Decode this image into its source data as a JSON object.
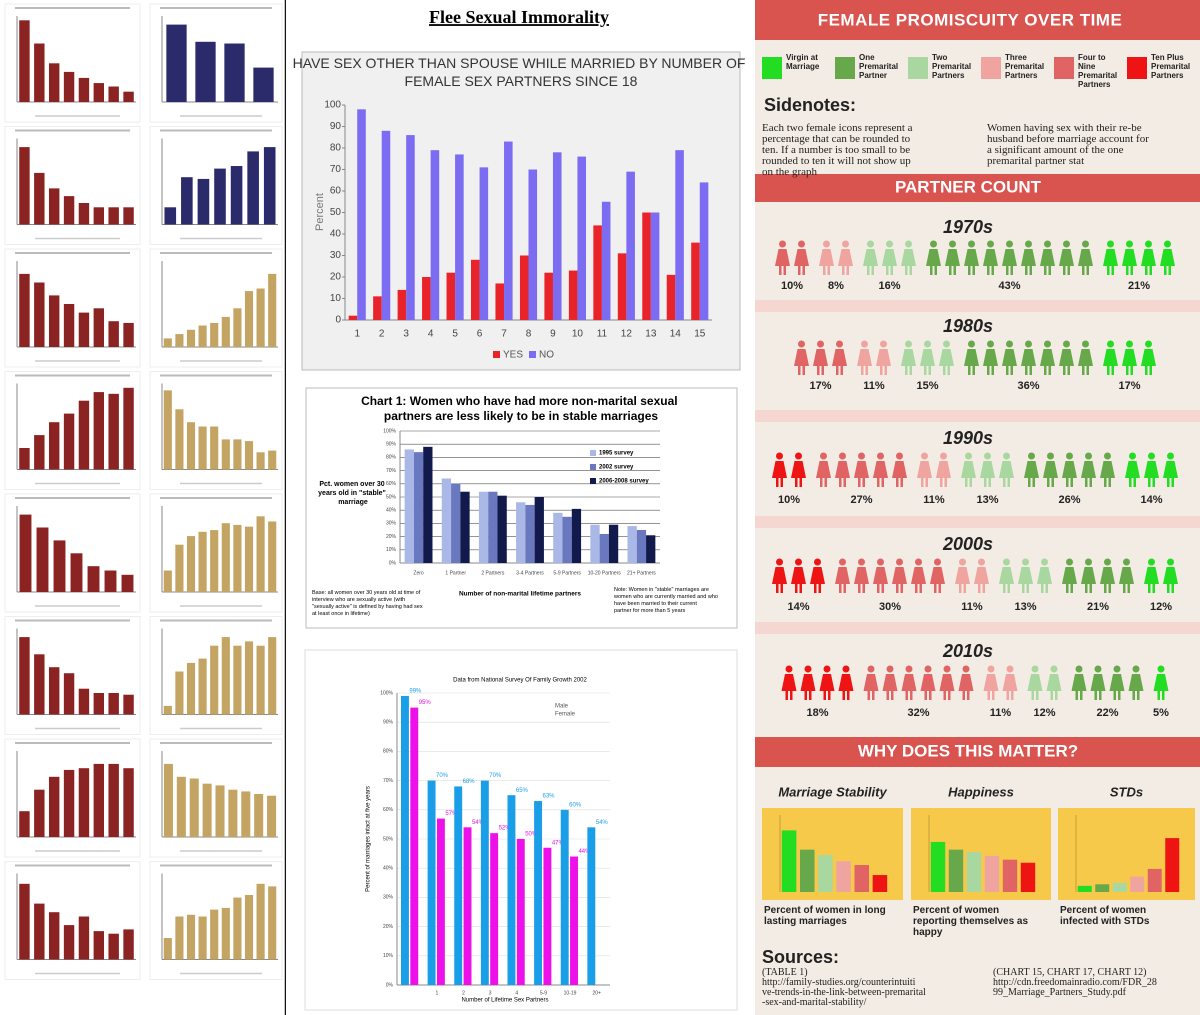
{
  "page_title": "Flee Sexual Immorality",
  "thumbnails": [
    {
      "type": "bar",
      "color": "#8b2323",
      "ylim": [
        0,
        100
      ],
      "values": [
        95,
        68,
        45,
        35,
        28,
        22,
        18,
        12
      ]
    },
    {
      "type": "bar",
      "color": "#2b2b6b",
      "ylim": [
        0,
        100
      ],
      "values": [
        90,
        70,
        68,
        40
      ]
    },
    {
      "type": "bar",
      "color": "#8b2323",
      "ylim": [
        0,
        100
      ],
      "values": [
        90,
        60,
        42,
        33,
        25,
        20,
        20,
        20
      ]
    },
    {
      "type": "bar",
      "color": "#2b2b6b",
      "ylim": [
        0,
        100
      ],
      "values": [
        20,
        55,
        53,
        65,
        68,
        85,
        90
      ]
    },
    {
      "type": "bar",
      "color": "#8b2323",
      "ylim": [
        0,
        100
      ],
      "values": [
        85,
        75,
        60,
        50,
        40,
        45,
        30,
        28
      ]
    },
    {
      "type": "bar",
      "color": "#c3a463",
      "ylim": [
        0,
        100
      ],
      "values": [
        10,
        15,
        20,
        25,
        28,
        35,
        45,
        65,
        68,
        85
      ]
    },
    {
      "type": "bar",
      "color": "#8b2323",
      "ylim": [
        0,
        100
      ],
      "values": [
        25,
        40,
        55,
        65,
        80,
        90,
        88,
        95
      ]
    },
    {
      "type": "bar",
      "color": "#c3a463",
      "ylim": [
        0,
        100
      ],
      "values": [
        92,
        70,
        55,
        50,
        50,
        35,
        35,
        33,
        20,
        22
      ]
    },
    {
      "type": "bar",
      "color": "#8b2323",
      "ylim": [
        0,
        100
      ],
      "values": [
        90,
        75,
        60,
        45,
        30,
        25,
        20
      ]
    },
    {
      "type": "bar",
      "color": "#c3a463",
      "ylim": [
        0,
        100
      ],
      "values": [
        25,
        55,
        65,
        70,
        72,
        80,
        78,
        76,
        88,
        82
      ]
    },
    {
      "type": "bar",
      "color": "#8b2323",
      "ylim": [
        0,
        100
      ],
      "values": [
        90,
        70,
        55,
        48,
        30,
        25,
        25,
        23
      ]
    },
    {
      "type": "bar",
      "color": "#c3a463",
      "ylim": [
        0,
        100
      ],
      "values": [
        10,
        50,
        60,
        65,
        80,
        90,
        80,
        85,
        80,
        90
      ]
    },
    {
      "type": "bar",
      "color": "#8b2323",
      "ylim": [
        0,
        100
      ],
      "values": [
        30,
        55,
        70,
        78,
        80,
        85,
        85,
        80
      ]
    },
    {
      "type": "bar",
      "color": "#c3a463",
      "ylim": [
        0,
        100
      ],
      "values": [
        85,
        70,
        68,
        62,
        60,
        55,
        53,
        50,
        48
      ]
    },
    {
      "type": "bar",
      "color": "#8b2323",
      "ylim": [
        0,
        100
      ],
      "values": [
        88,
        65,
        55,
        40,
        50,
        33,
        30,
        35
      ]
    },
    {
      "type": "bar",
      "color": "#c3a463",
      "ylim": [
        0,
        100
      ],
      "values": [
        25,
        50,
        52,
        50,
        58,
        60,
        72,
        75,
        88,
        85
      ]
    }
  ],
  "chart_data": [
    {
      "type": "bar",
      "title": "HAVE SEX OTHER THAN SPOUSE WHILE MARRIED BY NUMBER OF FEMALE SEX PARTNERS SINCE 18",
      "y_label": "Percent",
      "categories": [
        "1",
        "2",
        "3",
        "4",
        "5",
        "6",
        "7",
        "8",
        "9",
        "10",
        "11",
        "12",
        "13",
        "14",
        "15"
      ],
      "series": [
        {
          "name": "YES",
          "color": "#e8242a",
          "values": [
            2,
            11,
            14,
            20,
            22,
            28,
            17,
            30,
            22,
            23,
            44,
            31,
            50,
            21,
            36
          ]
        },
        {
          "name": "NO",
          "color": "#7b6cf2",
          "values": [
            98,
            88,
            86,
            79,
            77,
            71,
            83,
            70,
            78,
            76,
            55,
            69,
            50,
            79,
            64
          ]
        }
      ],
      "ylim": [
        0,
        100
      ],
      "yticks": [
        0,
        10,
        20,
        30,
        40,
        50,
        60,
        70,
        80,
        90,
        100
      ],
      "grid": false
    },
    {
      "type": "bar",
      "title": "Chart 1: Women who have had more non-marital sexual partners are less likely to be in stable marriages",
      "y_label": "Pct. women over 30 years old in \"stable\" marriage",
      "x_label": "Number of non-marital lifetime partners",
      "base_note": "Base: all women over 30 years old at time of interview who are sexually active (with \"sexually active\" is defined by having had sex at least once in lifetime)",
      "note": "Note: Women in \"stable\" marriages are women who are currently married and who have been married to their current partner for more than 5 years",
      "categories": [
        "Zero",
        "1 Partner",
        "2 Partners",
        "3-4 Partners",
        "5-9 Partners",
        "10-20 Partners",
        "21+ Partners"
      ],
      "series": [
        {
          "name": "1995 survey",
          "color": "#aab8e8",
          "values": [
            86,
            64,
            54,
            46,
            38,
            29,
            28
          ]
        },
        {
          "name": "2002 survey",
          "color": "#6a78c0",
          "values": [
            84,
            60,
            54,
            44,
            35,
            22,
            25
          ]
        },
        {
          "name": "2006-2008 survey",
          "color": "#111a4a",
          "values": [
            88,
            54,
            51,
            50,
            41,
            29,
            21
          ]
        }
      ],
      "ylim": [
        0,
        100
      ],
      "yticks": [
        {
          "value": 0,
          "label": "0%"
        },
        {
          "value": 10,
          "label": "10%"
        },
        {
          "value": 20,
          "label": "20%"
        },
        {
          "value": 30,
          "label": "30%"
        },
        {
          "value": 40,
          "label": "40%"
        },
        {
          "value": 50,
          "label": "50%"
        },
        {
          "value": 60,
          "label": "60%"
        },
        {
          "value": 70,
          "label": "70%"
        },
        {
          "value": 80,
          "label": "80%"
        },
        {
          "value": 90,
          "label": "90%"
        },
        {
          "value": 100,
          "label": "100%"
        }
      ],
      "grid": true
    },
    {
      "type": "bar",
      "title": "Data from National Survey Of Family Growth 2002",
      "y_label": "Percent of marriages intact at five years",
      "x_label": "Number of Lifetime Sex Partners",
      "categories": [
        null,
        "1",
        "2",
        "3",
        "4",
        "5-9",
        "10-19",
        "20+"
      ],
      "series": [
        {
          "name": "Male",
          "color": "#1a9ee8",
          "values": [
            99,
            70,
            68,
            70,
            65,
            63,
            60,
            54
          ],
          "value_labels": [
            "99%",
            "70%",
            "68%",
            "70%",
            "65%",
            "63%",
            "60%",
            "54%"
          ]
        },
        {
          "name": "Female",
          "color": "#ee10e8",
          "values": [
            95,
            57,
            54,
            52,
            50,
            47,
            44,
            null
          ],
          "value_labels": [
            "95%",
            "57%",
            "54%",
            "52%",
            "50%",
            "47%",
            "44%",
            null
          ]
        }
      ],
      "ylim": [
        0,
        100
      ],
      "yticks": [
        {
          "value": 0,
          "label": "0%"
        },
        {
          "value": 10,
          "label": "10%"
        },
        {
          "value": 20,
          "label": "20%"
        },
        {
          "value": 30,
          "label": "30%"
        },
        {
          "value": 40,
          "label": "40%"
        },
        {
          "value": 50,
          "label": "50%"
        },
        {
          "value": 60,
          "label": "60%"
        },
        {
          "value": 70,
          "label": "70%"
        },
        {
          "value": 80,
          "label": "80%"
        },
        {
          "value": 90,
          "label": "90%"
        },
        {
          "value": 100,
          "label": "100%"
        }
      ],
      "grid": true
    }
  ],
  "infographic": {
    "title": "FEMALE PROMISCUITY OVER TIME",
    "legend": [
      {
        "name": "Virgin at Marriage",
        "color": "#22dd22"
      },
      {
        "name": "One Premarital Partner",
        "color": "#66a84a"
      },
      {
        "name": "Two Premarital Partners",
        "color": "#a8d8a0"
      },
      {
        "name": "Three Premarital Partners",
        "color": "#f0a4a0"
      },
      {
        "name": "Four to Nine Premarital Partners",
        "color": "#e06464"
      },
      {
        "name": "Ten Plus Premarital Partners",
        "color": "#ee1414"
      }
    ],
    "sidenotes_heading": "Sidenotes:",
    "sidenotes": [
      "Each two female icons represent a percentage that can be rounded to ten. If a number is too small to be rounded to ten it will not show up on the graph",
      "Women having sex with their re-be husband before marriage account for a significant amount of the one premarital partner stat"
    ],
    "partner_heading": "PARTNER COUNT",
    "decades": [
      {
        "label": "1970s",
        "values": [
          21,
          43,
          16,
          8,
          10,
          null
        ],
        "value_labels": [
          "21%",
          "43%",
          "16%",
          "8%",
          "10%",
          null
        ]
      },
      {
        "label": "1980s",
        "values": [
          17,
          36,
          15,
          11,
          17,
          null
        ],
        "value_labels": [
          "17%",
          "36%",
          "15%",
          "11%",
          "17%",
          null
        ]
      },
      {
        "label": "1990s",
        "values": [
          14,
          26,
          13,
          11,
          27,
          10
        ],
        "value_labels": [
          "14%",
          "26%",
          "13%",
          "11%",
          "27%",
          "10%"
        ]
      },
      {
        "label": "2000s",
        "values": [
          12,
          21,
          13,
          11,
          30,
          14
        ],
        "value_labels": [
          "12%",
          "21%",
          "13%",
          "11%",
          "30%",
          "14%"
        ]
      },
      {
        "label": "2010s",
        "values": [
          5,
          22,
          12,
          11,
          32,
          18
        ],
        "value_labels": [
          "5%",
          "22%",
          "12%",
          "11%",
          "32%",
          "18%"
        ]
      }
    ],
    "why_heading": "WHY DOES THIS MATTER?",
    "impacts": [
      {
        "title": "Marriage Stability",
        "caption": "Percent of women in long lasting marriages",
        "ylim": [
          0,
          100
        ],
        "values": [
          80,
          55,
          48,
          40,
          35,
          22
        ]
      },
      {
        "title": "Happiness",
        "caption": "Percent of women reporting themselves as happy",
        "ylim": [
          0,
          100
        ],
        "values": [
          65,
          55,
          52,
          47,
          42,
          38
        ]
      },
      {
        "title": "STDs",
        "caption": "Percent of women infected with STDs",
        "ylim": [
          0,
          100
        ],
        "values": [
          8,
          10,
          12,
          20,
          30,
          70
        ]
      }
    ],
    "sources_heading": "Sources:",
    "sources": [
      "(TABLE 1) http://family-studies.org/counterintuitive-trends-in-the-link-between-premarital-sex-and-marital-stability/",
      "(CHART 15, CHART 17, CHART 12) http://cdn.freedomainradio.com/FDR_2899_Marriage_Partners_Study.pdf"
    ]
  }
}
